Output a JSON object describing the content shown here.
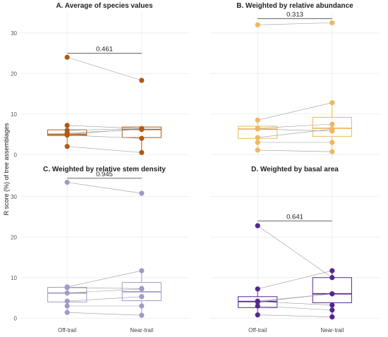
{
  "figure": {
    "ylabel": "R score (%) of tree assemblages",
    "xcategories": [
      "Off-trail",
      "Near-trail"
    ]
  },
  "chart_data": [
    {
      "type": "box",
      "title": "A. Average of species values",
      "color": "#b15a12",
      "ylim": [
        -1,
        35
      ],
      "yticks": [
        0,
        10,
        20,
        30
      ],
      "p_value": "0.461",
      "bracket_y": 25,
      "pairs": [
        [
          24,
          18.3
        ],
        [
          7.2,
          6.4
        ],
        [
          6.0,
          6.4
        ],
        [
          5.0,
          6.4
        ],
        [
          4.8,
          4.0
        ],
        [
          5.3,
          6.2
        ],
        [
          2.0,
          0.5
        ]
      ],
      "boxes": [
        {
          "category": "Off-trail",
          "q1": 4.7,
          "median": 5.0,
          "q3": 6.1,
          "whisker_low": 2.0,
          "whisker_high": 7.2
        },
        {
          "category": "Near-trail",
          "q1": 4.2,
          "median": 6.2,
          "q3": 6.8,
          "whisker_low": 0.5,
          "whisker_high": 6.8
        }
      ]
    },
    {
      "type": "box",
      "title": "B. Weighted by relative abundance",
      "color": "#f0b75e",
      "ylim": [
        -1,
        35
      ],
      "yticks": [
        0,
        10,
        20,
        30
      ],
      "p_value": "0.313",
      "bracket_y": 33.5,
      "pairs": [
        [
          32,
          32.5
        ],
        [
          8.5,
          12.8
        ],
        [
          6.5,
          7.5
        ],
        [
          6.3,
          5.8
        ],
        [
          4.2,
          6.3
        ],
        [
          3.0,
          3.0
        ],
        [
          1.1,
          0.7
        ]
      ],
      "boxes": [
        {
          "category": "Off-trail",
          "q1": 4.0,
          "median": 6.3,
          "q3": 7.0,
          "whisker_low": 1.1,
          "whisker_high": 8.5
        },
        {
          "category": "Near-trail",
          "q1": 4.5,
          "median": 6.5,
          "q3": 9.2,
          "whisker_low": 0.7,
          "whisker_high": 12.8
        }
      ]
    },
    {
      "type": "box",
      "title": "C. Weighted by relative stem density",
      "color": "#9e9ac8",
      "ylim": [
        -1,
        35
      ],
      "yticks": [
        0,
        10,
        20,
        30
      ],
      "p_value": "0.945",
      "bracket_y": 34.5,
      "pairs": [
        [
          33.5,
          30.8
        ],
        [
          7.7,
          11.7
        ],
        [
          7.5,
          7.3
        ],
        [
          6.2,
          7.2
        ],
        [
          4.2,
          5.3
        ],
        [
          3.0,
          3.0
        ],
        [
          1.4,
          0.7
        ]
      ],
      "boxes": [
        {
          "category": "Off-trail",
          "q1": 4.0,
          "median": 6.2,
          "q3": 7.6,
          "whisker_low": 1.4,
          "whisker_high": 7.7
        },
        {
          "category": "Near-trail",
          "q1": 4.3,
          "median": 6.5,
          "q3": 8.8,
          "whisker_low": 0.7,
          "whisker_high": 11.7
        }
      ]
    },
    {
      "type": "box",
      "title": "D. Weighted by basal area",
      "color": "#54278f",
      "ylim": [
        -1,
        35
      ],
      "yticks": [
        0,
        10,
        20,
        30
      ],
      "p_value": "0.641",
      "bracket_y": 24,
      "pairs": [
        [
          22.8,
          10.0
        ],
        [
          7.2,
          11.7
        ],
        [
          4.2,
          6.0
        ],
        [
          4.0,
          6.0
        ],
        [
          3.0,
          2.0
        ],
        [
          4.1,
          3.2
        ],
        [
          0.8,
          0.3
        ]
      ],
      "boxes": [
        {
          "category": "Off-trail",
          "q1": 2.6,
          "median": 4.1,
          "q3": 5.3,
          "whisker_low": 0.8,
          "whisker_high": 7.2
        },
        {
          "category": "Near-trail",
          "q1": 3.8,
          "median": 6.0,
          "q3": 10.0,
          "whisker_low": 0.3,
          "whisker_high": 11.7
        }
      ]
    }
  ]
}
